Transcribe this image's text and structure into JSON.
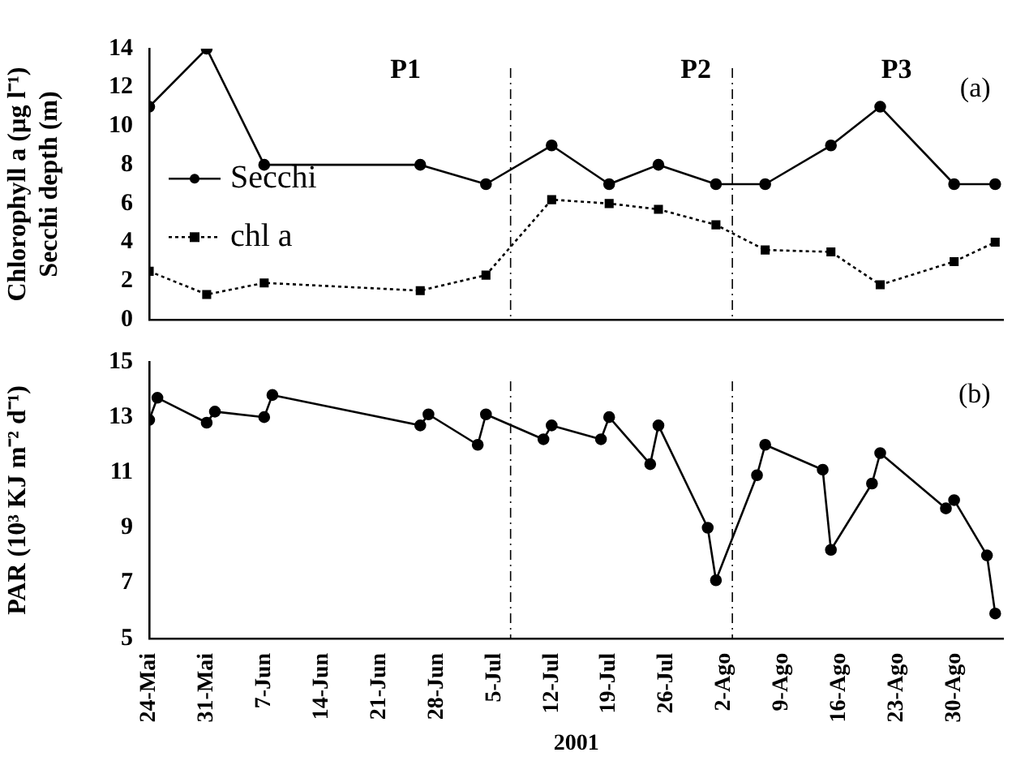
{
  "chart_data": [
    {
      "type": "line",
      "ylabel": "Chlorophyll a (µg l⁻¹)\nSecchi depth (m)",
      "tick_labels": "y",
      "legend": "left",
      "grid": false,
      "xlim": [
        "2001-05-24",
        "2001-09-05"
      ],
      "xticks": [
        {
          "value": "2001-05-24",
          "label": null
        },
        {
          "value": "2001-05-31",
          "label": null
        },
        {
          "value": "2001-06-07",
          "label": null
        },
        {
          "value": "2001-06-14",
          "label": null
        },
        {
          "value": "2001-06-21",
          "label": null
        },
        {
          "value": "2001-06-28",
          "label": null
        },
        {
          "value": "2001-07-05",
          "label": null
        },
        {
          "value": "2001-07-12",
          "label": null
        },
        {
          "value": "2001-07-19",
          "label": null
        },
        {
          "value": "2001-07-26",
          "label": null
        },
        {
          "value": "2001-08-02",
          "label": null
        },
        {
          "value": "2001-08-09",
          "label": null
        },
        {
          "value": "2001-08-16",
          "label": null
        },
        {
          "value": "2001-08-23",
          "label": null
        },
        {
          "value": "2001-08-30",
          "label": null
        }
      ],
      "ylim": [
        0,
        14
      ],
      "yticks": [
        0,
        2,
        4,
        6,
        8,
        10,
        12,
        14
      ],
      "series": [
        {
          "name": "Secchi",
          "color": "#000000",
          "marker": "circle",
          "line_style": "solid",
          "x": [
            "2001-05-24",
            "2001-05-31",
            "2001-06-07",
            "2001-06-26",
            "2001-07-04",
            "2001-07-12",
            "2001-07-19",
            "2001-07-25",
            "2001-08-01",
            "2001-08-07",
            "2001-08-15",
            "2001-08-21",
            "2001-08-30",
            "2001-09-04"
          ],
          "values": [
            11,
            14,
            8,
            8,
            7,
            9,
            7,
            8,
            7,
            7,
            9,
            11,
            7,
            7
          ]
        },
        {
          "name": "chl a",
          "color": "#000000",
          "marker": "square",
          "line_style": "dotted",
          "x": [
            "2001-05-24",
            "2001-05-31",
            "2001-06-07",
            "2001-06-26",
            "2001-07-04",
            "2001-07-12",
            "2001-07-19",
            "2001-07-25",
            "2001-08-01",
            "2001-08-07",
            "2001-08-15",
            "2001-08-21",
            "2001-08-30",
            "2001-09-04"
          ],
          "values": [
            2.5,
            1.3,
            1.9,
            1.5,
            2.3,
            6.2,
            6.0,
            5.7,
            4.9,
            3.6,
            3.5,
            1.8,
            3.0,
            4.0
          ]
        }
      ],
      "ref_lines": [
        {
          "axis": "x",
          "value": "2001-07-07",
          "color": "#000000",
          "line_style": "dashed"
        },
        {
          "axis": "x",
          "value": "2001-08-03",
          "color": "#000000",
          "line_style": "dashed"
        }
      ],
      "annotations": [
        "P1",
        "P2",
        "P3",
        "(a)"
      ]
    },
    {
      "type": "line",
      "ylabel": "PAR (10³ KJ m⁻² d⁻¹)",
      "xlabel": "2001",
      "legend": false,
      "grid": false,
      "xlim": [
        "2001-05-24",
        "2001-09-05"
      ],
      "xticks": [
        {
          "value": "2001-05-24",
          "label": "24-Mai"
        },
        {
          "value": "2001-05-31",
          "label": "31-Mai"
        },
        {
          "value": "2001-06-07",
          "label": "7-Jun"
        },
        {
          "value": "2001-06-14",
          "label": "14-Jun"
        },
        {
          "value": "2001-06-21",
          "label": "21-Jun"
        },
        {
          "value": "2001-06-28",
          "label": "28-Jun"
        },
        {
          "value": "2001-07-05",
          "label": "5-Jul"
        },
        {
          "value": "2001-07-12",
          "label": "12-Jul"
        },
        {
          "value": "2001-07-19",
          "label": "19-Jul"
        },
        {
          "value": "2001-07-26",
          "label": "26-Jul"
        },
        {
          "value": "2001-08-02",
          "label": "2-Ago"
        },
        {
          "value": "2001-08-09",
          "label": "9-Ago"
        },
        {
          "value": "2001-08-16",
          "label": "16-Ago"
        },
        {
          "value": "2001-08-23",
          "label": "23-Ago"
        },
        {
          "value": "2001-08-30",
          "label": "30-Ago"
        }
      ],
      "ylim": [
        5,
        15
      ],
      "yticks": [
        5,
        7,
        9,
        11,
        13,
        15
      ],
      "series": [
        {
          "color": "#000000",
          "marker": "circle",
          "line_style": "solid",
          "x": [
            "2001-05-24",
            "2001-05-25",
            "2001-05-31",
            "2001-06-01",
            "2001-06-07",
            "2001-06-08",
            "2001-06-26",
            "2001-06-27",
            "2001-07-03",
            "2001-07-04",
            "2001-07-11",
            "2001-07-12",
            "2001-07-18",
            "2001-07-19",
            "2001-07-24",
            "2001-07-25",
            "2001-07-31",
            "2001-08-01",
            "2001-08-06",
            "2001-08-07",
            "2001-08-14",
            "2001-08-15",
            "2001-08-20",
            "2001-08-21",
            "2001-08-29",
            "2001-08-30",
            "2001-09-03",
            "2001-09-04"
          ],
          "values": [
            12.9,
            13.7,
            12.8,
            13.2,
            13.0,
            13.8,
            12.7,
            13.1,
            12.0,
            13.1,
            12.2,
            12.7,
            12.2,
            13.0,
            11.3,
            12.7,
            9.0,
            7.1,
            10.9,
            12.0,
            11.1,
            8.2,
            10.6,
            11.7,
            9.7,
            10.0,
            8.0,
            5.9
          ]
        }
      ],
      "ref_lines": [
        {
          "axis": "x",
          "value": "2001-07-07",
          "color": "#000000",
          "line_style": "dashed"
        },
        {
          "axis": "x",
          "value": "2001-08-03",
          "color": "#000000",
          "line_style": "dashed"
        }
      ],
      "annotations": [
        "(b)"
      ]
    }
  ]
}
